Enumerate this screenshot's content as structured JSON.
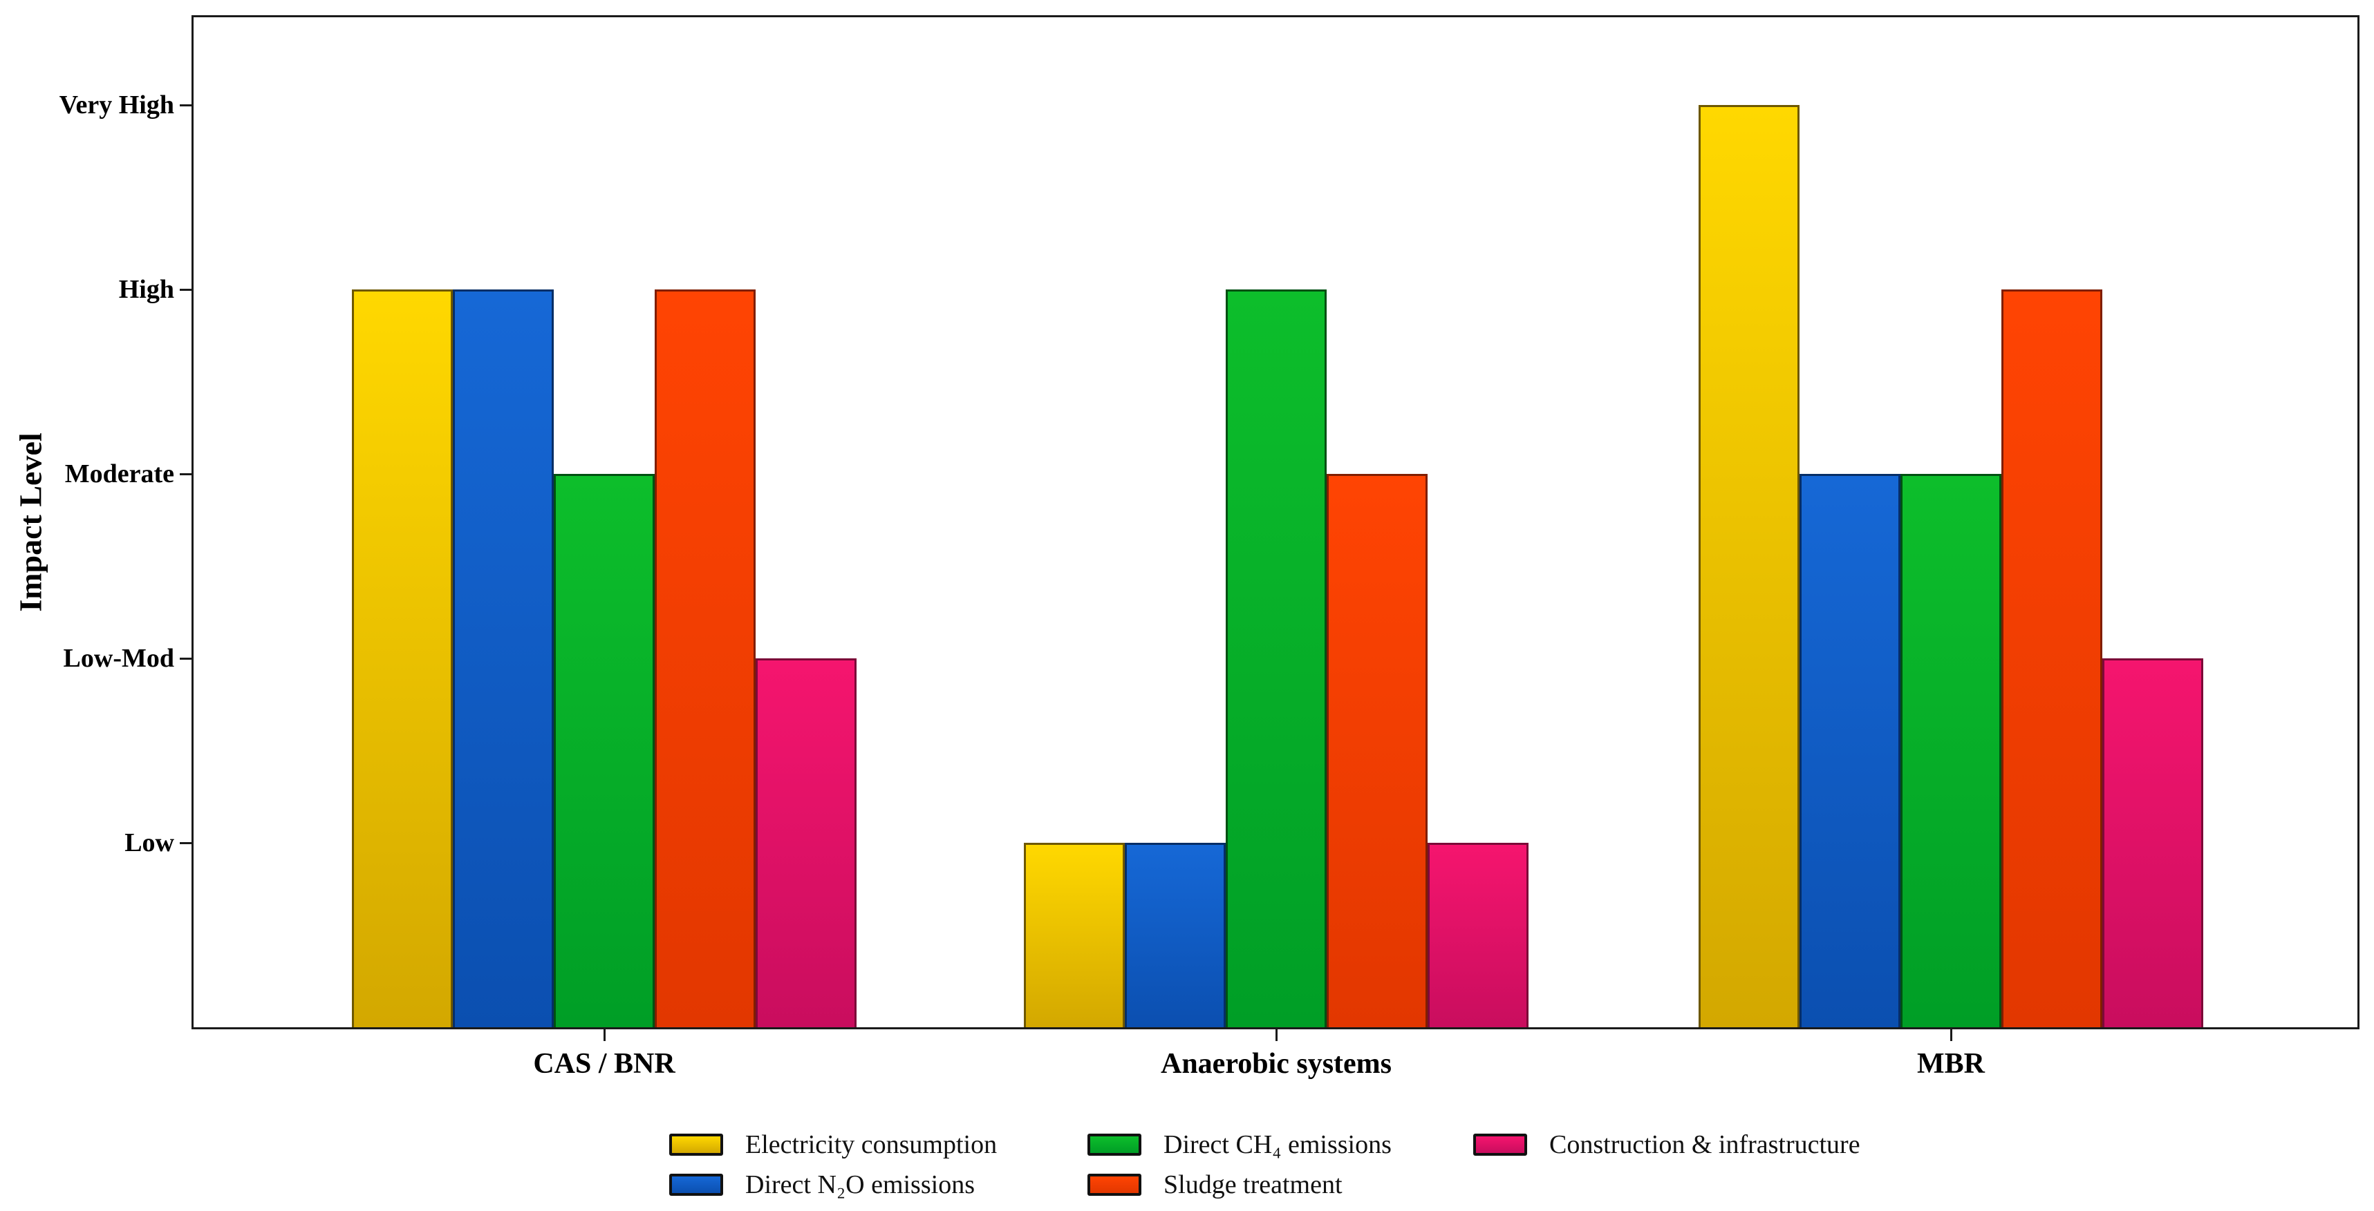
{
  "chart_data": {
    "type": "bar",
    "title": "",
    "xlabel": "",
    "ylabel": "Impact Level",
    "categories": [
      "CAS / BNR",
      "Anaerobic systems",
      "MBR"
    ],
    "series": [
      {
        "name": "Electricity consumption",
        "values": [
          4,
          1,
          5
        ],
        "value_labels": [
          "High",
          "Low",
          "Very High"
        ],
        "color_top": "#FFD800",
        "color_bottom": "#D3A800",
        "edge_color": "#6e5800"
      },
      {
        "name": "Direct N₂O emissions",
        "values": [
          4,
          1,
          3
        ],
        "value_labels": [
          "High",
          "Low",
          "Moderate"
        ],
        "color_top": "#1668D6",
        "color_bottom": "#0B4FB0",
        "edge_color": "#062e66"
      },
      {
        "name": "Direct CH₄ emissions",
        "values": [
          3,
          4,
          3
        ],
        "value_labels": [
          "Moderate",
          "High",
          "Moderate"
        ],
        "color_top": "#0DBE2B",
        "color_bottom": "#009E26",
        "edge_color": "#005012"
      },
      {
        "name": "Sludge treatment",
        "values": [
          4,
          3,
          4
        ],
        "value_labels": [
          "High",
          "Moderate",
          "High"
        ],
        "color_top": "#FF4403",
        "color_bottom": "#E23700",
        "edge_color": "#801e00"
      },
      {
        "name": "Construction & infrastructure",
        "values": [
          2,
          1,
          2
        ],
        "value_labels": [
          "Low-Mod",
          "Low",
          "Low-Mod"
        ],
        "color_top": "#F5156E",
        "color_bottom": "#C90D5E",
        "edge_color": "#7c0a38"
      }
    ],
    "y_ticks": [
      {
        "label": "Low",
        "value": 1
      },
      {
        "label": "Low-Mod",
        "value": 2
      },
      {
        "label": "Moderate",
        "value": 3
      },
      {
        "label": "High",
        "value": 4
      },
      {
        "label": "Very High",
        "value": 5
      }
    ],
    "ylim": [
      0,
      5.5
    ],
    "grid": false,
    "legend_position": "bottom",
    "legend_rows": [
      [
        "Electricity consumption",
        "Direct CH₄ emissions",
        "Construction & infrastructure"
      ],
      [
        "Direct N₂O emissions",
        "Sludge treatment"
      ]
    ]
  }
}
